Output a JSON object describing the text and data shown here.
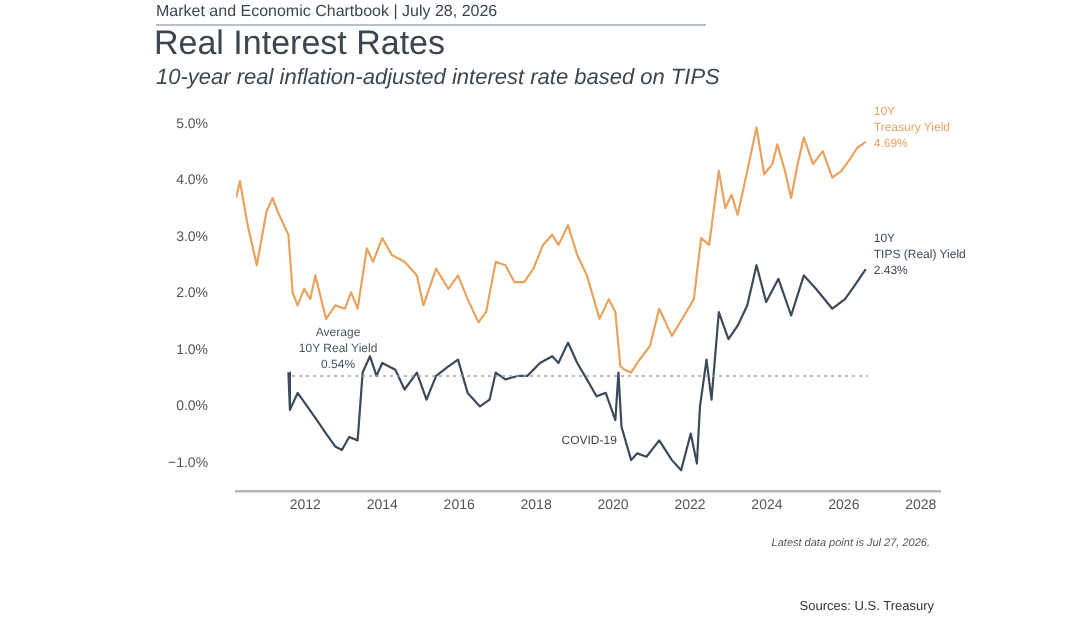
{
  "chart_data": {
    "type": "line",
    "title": "Real Interest Rates",
    "subtitle": "10-year real inflation-adjusted interest rate based on TIPS",
    "annotations": [
      "Market and Economic Chartbook | July 28, 2026",
      {
        "text": "COVID-19",
        "x": 2020.1,
        "y": -0.6
      },
      "Latest data point is Jul 27, 2026.",
      "Sources: U.S. Treasury"
    ],
    "xlim": [
      2010.2,
      2028.5
    ],
    "xticks": [
      2012,
      2014,
      2016,
      2018,
      2020,
      2022,
      2024,
      2026,
      2028
    ],
    "ylim": [
      -1.5,
      5
    ],
    "yticks": [
      {
        "value": -1,
        "label": "−1.0%"
      },
      {
        "value": 0,
        "label": "0.0%"
      },
      {
        "value": 1,
        "label": "1.0%"
      },
      {
        "value": 2,
        "label": "2.0%"
      },
      {
        "value": 3,
        "label": "3.0%"
      },
      {
        "value": 4,
        "label": "4.0%"
      },
      {
        "value": 5,
        "label": "5.0%"
      }
    ],
    "grid": false,
    "legend": false,
    "marker": "none",
    "line_style": "solid",
    "ref_lines": [
      {
        "axis": "y",
        "value": 0.54,
        "label": "Average\n10Y Real Yield\n0.54%",
        "line_style": "dotted",
        "color": "#9aa3ad"
      }
    ],
    "series": [
      {
        "name": "10Y Treasury Yield",
        "color": "#e8a35f",
        "x": [
          2010.2,
          2010.3,
          2010.5,
          2010.74,
          2010.99,
          2011.15,
          2011.28,
          2011.56,
          2011.67,
          2011.8,
          2011.97,
          2012.13,
          2012.26,
          2012.54,
          2012.78,
          2013.03,
          2013.19,
          2013.36,
          2013.6,
          2013.76,
          2014.0,
          2014.25,
          2014.58,
          2014.9,
          2015.07,
          2015.4,
          2015.72,
          2015.97,
          2016.22,
          2016.5,
          2016.7,
          2016.95,
          2017.2,
          2017.44,
          2017.69,
          2017.93,
          2018.18,
          2018.42,
          2018.58,
          2018.83,
          2019.07,
          2019.32,
          2019.65,
          2019.89,
          2020.06,
          2020.19,
          2020.3,
          2020.47,
          2020.63,
          2020.96,
          2021.2,
          2021.53,
          2021.85,
          2022.1,
          2022.29,
          2022.5,
          2022.75,
          2022.92,
          2023.08,
          2023.24,
          2023.49,
          2023.73,
          2023.93,
          2024.14,
          2024.27,
          2024.47,
          2024.63,
          2024.8,
          2024.96,
          2025.2,
          2025.45,
          2025.7,
          2025.94,
          2026.18,
          2026.35,
          2026.48,
          2026.57
        ],
        "values": [
          3.69,
          3.99,
          3.21,
          2.5,
          3.45,
          3.69,
          3.45,
          3.04,
          2.02,
          1.79,
          2.08,
          1.9,
          2.32,
          1.55,
          1.79,
          1.73,
          2.02,
          1.73,
          2.8,
          2.56,
          2.98,
          2.68,
          2.56,
          2.32,
          1.79,
          2.44,
          2.08,
          2.32,
          1.9,
          1.49,
          1.67,
          2.56,
          2.5,
          2.2,
          2.2,
          2.44,
          2.86,
          3.04,
          2.86,
          3.21,
          2.68,
          2.32,
          1.55,
          1.9,
          1.67,
          0.71,
          0.65,
          0.6,
          0.77,
          1.07,
          1.73,
          1.25,
          1.61,
          1.9,
          2.98,
          2.86,
          4.17,
          3.51,
          3.75,
          3.39,
          4.17,
          4.94,
          4.11,
          4.29,
          4.64,
          4.17,
          3.69,
          4.29,
          4.76,
          4.29,
          4.52,
          4.05,
          4.17,
          4.4,
          4.58,
          4.64,
          4.69
        ],
        "value_labels": [
          null,
          null,
          null,
          null,
          null,
          null,
          null,
          null,
          null,
          null,
          null,
          null,
          null,
          null,
          null,
          null,
          null,
          null,
          null,
          null,
          null,
          null,
          null,
          null,
          null,
          null,
          null,
          null,
          null,
          null,
          null,
          null,
          null,
          null,
          null,
          null,
          null,
          null,
          null,
          null,
          null,
          null,
          null,
          null,
          null,
          null,
          null,
          null,
          null,
          null,
          null,
          null,
          null,
          null,
          null,
          null,
          null,
          null,
          null,
          null,
          null,
          null,
          null,
          null,
          null,
          null,
          null,
          null,
          null,
          null,
          null,
          null,
          null,
          null,
          null,
          null,
          "4.69%"
        ]
      },
      {
        "name": "10Y TIPS (Real) Yield",
        "color": "#3c4a5c",
        "x": [
          2011.56,
          2011.6,
          2011.8,
          2012.05,
          2012.3,
          2012.54,
          2012.78,
          2012.95,
          2013.14,
          2013.36,
          2013.49,
          2013.68,
          2013.85,
          2014.0,
          2014.34,
          2014.58,
          2014.9,
          2015.15,
          2015.4,
          2015.72,
          2015.97,
          2016.22,
          2016.54,
          2016.79,
          2016.95,
          2017.2,
          2017.52,
          2017.77,
          2018.1,
          2018.42,
          2018.58,
          2018.83,
          2019.07,
          2019.32,
          2019.57,
          2019.81,
          2020.06,
          2020.14,
          2020.22,
          2020.47,
          2020.63,
          2020.87,
          2021.2,
          2021.53,
          2021.77,
          2022.02,
          2022.18,
          2022.26,
          2022.43,
          2022.56,
          2022.75,
          2023.0,
          2023.24,
          2023.49,
          2023.73,
          2023.98,
          2024.3,
          2024.63,
          2024.96,
          2025.28,
          2025.7,
          2026.03,
          2026.28,
          2026.57
        ],
        "values": [
          0.6,
          -0.06,
          0.24,
          0.0,
          -0.24,
          -0.48,
          -0.71,
          -0.77,
          -0.54,
          -0.6,
          0.6,
          0.89,
          0.54,
          0.77,
          0.65,
          0.3,
          0.6,
          0.12,
          0.54,
          0.71,
          0.83,
          0.24,
          0.0,
          0.12,
          0.6,
          0.48,
          0.54,
          0.54,
          0.77,
          0.89,
          0.77,
          1.13,
          0.77,
          0.48,
          0.18,
          0.24,
          -0.24,
          0.6,
          -0.36,
          -0.95,
          -0.83,
          -0.89,
          -0.6,
          -0.95,
          -1.13,
          -0.48,
          -1.01,
          0.0,
          0.83,
          0.12,
          1.67,
          1.19,
          1.43,
          1.79,
          2.5,
          1.85,
          2.26,
          1.61,
          2.32,
          2.08,
          1.73,
          1.9,
          2.14,
          2.43
        ],
        "value_labels": [
          null,
          null,
          null,
          null,
          null,
          null,
          null,
          null,
          null,
          null,
          null,
          null,
          null,
          null,
          null,
          null,
          null,
          null,
          null,
          null,
          null,
          null,
          null,
          null,
          null,
          null,
          null,
          null,
          null,
          null,
          null,
          null,
          null,
          null,
          null,
          null,
          null,
          null,
          null,
          null,
          null,
          null,
          null,
          null,
          null,
          null,
          null,
          null,
          null,
          null,
          null,
          null,
          null,
          null,
          null,
          null,
          null,
          null,
          null,
          null,
          null,
          null,
          null,
          "2.43%"
        ]
      }
    ]
  }
}
